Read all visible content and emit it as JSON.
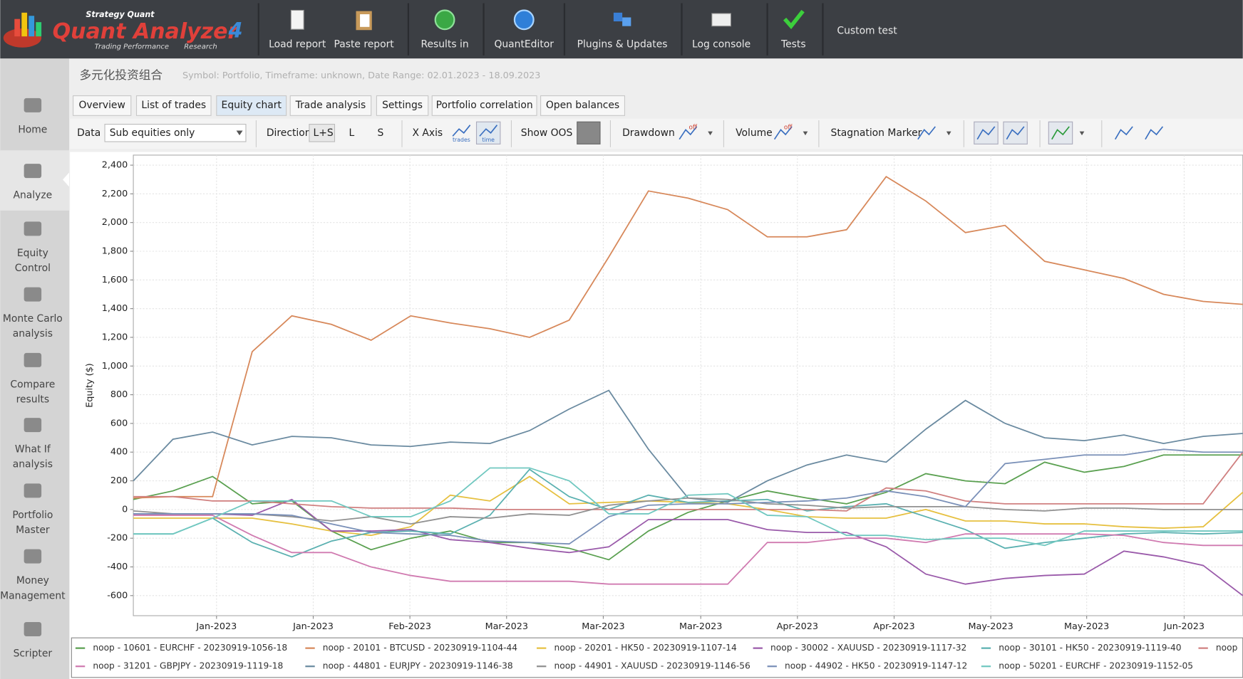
{
  "toolbar": {
    "logo": {
      "brand": "Strategy Quant",
      "title": "Quant Analyzer",
      "version": "4",
      "tagline": "Trading Performance",
      "tagline2": "Research"
    },
    "buttons": [
      "Load report",
      "Paste report",
      "Results in",
      "QuantEditor",
      "Plugins & Updates",
      "Log console",
      "Tests"
    ],
    "custom": "Custom test"
  },
  "sidebar": [
    [
      "Home"
    ],
    [
      "Analyze"
    ],
    [
      "Equity",
      "Control"
    ],
    [
      "Monte Carlo",
      "analysis"
    ],
    [
      "Compare",
      "results"
    ],
    [
      "What If",
      "analysis"
    ],
    [
      "Portfolio",
      "Master"
    ],
    [
      "Money",
      "Management"
    ],
    [
      "Scripter"
    ]
  ],
  "header": {
    "title": "多元化投资组合",
    "subtitle": "Symbol: Portfolio, Timeframe: unknown, Date Range: 02.01.2023 - 18.09.2023"
  },
  "tabs": [
    "Overview",
    "List of trades",
    "Equity chart",
    "Trade analysis",
    "Settings",
    "Portfolio correlation",
    "Open balances"
  ],
  "options": {
    "data_label": "Data",
    "data_value": "Sub equities only",
    "direction": "Direction",
    "directions": [
      "L+S",
      "L",
      "S"
    ],
    "x_axis": "X Axis",
    "x_axis_icons": [
      "trades",
      "time"
    ],
    "show_oos": "Show OOS",
    "drawdown": "Drawdown",
    "off": "off",
    "volume": "Volume",
    "stagnation": "Stagnation Marker"
  },
  "chart_data": {
    "type": "line",
    "ylabel": "Equity ($)",
    "x": [
      0,
      1,
      2,
      3,
      4,
      5,
      6,
      7,
      8,
      9,
      10,
      11,
      12,
      13,
      14,
      15,
      16,
      17,
      18,
      19,
      20,
      21,
      22,
      23,
      24,
      25,
      26,
      27,
      28
    ],
    "xlim": [
      0,
      28
    ],
    "xticks": [
      {
        "value": 2.1,
        "label": "Jan-2023"
      },
      {
        "value": 4.54,
        "label": "Jan-2023"
      },
      {
        "value": 6.98,
        "label": "Feb-2023"
      },
      {
        "value": 9.42,
        "label": "Mar-2023"
      },
      {
        "value": 11.86,
        "label": "Mar-2023"
      },
      {
        "value": 14.32,
        "label": "Mar-2023"
      },
      {
        "value": 16.76,
        "label": "Apr-2023"
      },
      {
        "value": 19.2,
        "label": "Apr-2023"
      },
      {
        "value": 21.64,
        "label": "May-2023"
      },
      {
        "value": 24.06,
        "label": "May-2023"
      },
      {
        "value": 26.52,
        "label": "Jun-2023"
      }
    ],
    "ylim": [
      -740,
      2470
    ],
    "yticks": [
      -600,
      -400,
      -200,
      0,
      200,
      400,
      600,
      800,
      {
        "value": 1000,
        "label": "1,000"
      },
      {
        "value": 1200,
        "label": "1,200"
      },
      {
        "value": 1400,
        "label": "1,400"
      },
      {
        "value": 1600,
        "label": "1,600"
      },
      {
        "value": 1800,
        "label": "1,800"
      },
      {
        "value": 2000,
        "label": "2,000"
      },
      {
        "value": 2200,
        "label": "2,200"
      },
      {
        "value": 2400,
        "label": "2,400"
      }
    ],
    "grid": true,
    "series": [
      {
        "name": "noop - 10601 - EURCHF - 20230919-1056-18",
        "color": "#5aa050",
        "values": [
          70,
          130,
          230,
          40,
          60,
          -150,
          -280,
          -200,
          -150,
          -230,
          -230,
          -270,
          -350,
          -150,
          -20,
          60,
          130,
          80,
          40,
          120,
          250,
          200,
          180,
          330,
          260,
          300,
          380,
          380,
          380
        ]
      },
      {
        "name": "noop - 20101 - BTCUSD - 20230919-1104-44",
        "color": "#d7885a",
        "values": [
          80,
          90,
          90,
          1100,
          1350,
          1290,
          1180,
          1350,
          1300,
          1260,
          1200,
          1320,
          1760,
          2220,
          2170,
          2090,
          1900,
          1900,
          1950,
          2320,
          2150,
          1930,
          1980,
          1730,
          1670,
          1610,
          1500,
          1450,
          1430
        ]
      },
      {
        "name": "noop - 20201 - HK50 - 20230919-1107-14",
        "color": "#e6c040",
        "values": [
          -60,
          -60,
          -60,
          -60,
          -100,
          -150,
          -180,
          -120,
          100,
          60,
          230,
          40,
          50,
          60,
          50,
          40,
          0,
          -50,
          -60,
          -60,
          0,
          -80,
          -80,
          -100,
          -100,
          -120,
          -130,
          -120,
          120
        ]
      },
      {
        "name": "noop - 30002 - XAUUSD - 20230919-1117-32",
        "color": "#9a5aaa",
        "values": [
          -30,
          -30,
          -30,
          -40,
          70,
          -150,
          -150,
          -140,
          -210,
          -230,
          -270,
          -300,
          -260,
          -70,
          -70,
          -70,
          -140,
          -160,
          -160,
          -260,
          -450,
          -520,
          -480,
          -460,
          -450,
          -290,
          -330,
          -390,
          -600
        ]
      },
      {
        "name": "noop - 30101 - HK50 - 20230919-1119-40",
        "color": "#5ab0b0",
        "values": [
          -170,
          -170,
          -60,
          -230,
          -330,
          -220,
          -160,
          -150,
          -170,
          -40,
          280,
          90,
          0,
          100,
          50,
          60,
          70,
          -10,
          20,
          40,
          -50,
          -140,
          -270,
          -230,
          -200,
          -170,
          -160,
          -170,
          -160
        ]
      },
      {
        "name": "noop",
        "color": "#d08080",
        "values": [
          90,
          90,
          60,
          60,
          40,
          20,
          10,
          10,
          10,
          0,
          0,
          0,
          0,
          0,
          0,
          0,
          0,
          0,
          -10,
          150,
          130,
          60,
          40,
          40,
          40,
          40,
          40,
          40,
          400
        ]
      },
      {
        "name": "noop - 31201 - GBPJPY - 20230919-1119-18",
        "color": "#d07ab0",
        "values": [
          -40,
          -40,
          -40,
          -180,
          -300,
          -300,
          -400,
          -460,
          -500,
          -500,
          -500,
          -500,
          -520,
          -520,
          -520,
          -520,
          -230,
          -230,
          -200,
          -200,
          -230,
          -170,
          -170,
          -170,
          -170,
          -180,
          -230,
          -250,
          -250
        ]
      },
      {
        "name": "noop - 44801 - EURJPY - 20230919-1146-38",
        "color": "#6a8aa0",
        "values": [
          200,
          490,
          540,
          450,
          510,
          500,
          450,
          440,
          470,
          460,
          550,
          700,
          830,
          420,
          80,
          50,
          200,
          310,
          380,
          330,
          560,
          760,
          600,
          500,
          480,
          520,
          460,
          510,
          530
        ]
      },
      {
        "name": "noop - 44901 - XAUUSD - 20230919-1146-56",
        "color": "#909090",
        "values": [
          -10,
          -30,
          -30,
          -30,
          -50,
          -80,
          -50,
          -100,
          -50,
          -60,
          -30,
          -40,
          30,
          60,
          80,
          70,
          40,
          30,
          10,
          20,
          20,
          20,
          0,
          -10,
          10,
          10,
          0,
          0,
          0
        ]
      },
      {
        "name": "noop - 44902 - HK50 - 20230919-1147-12",
        "color": "#7a90b8",
        "values": [
          -30,
          -30,
          -30,
          -30,
          -40,
          -100,
          -160,
          -170,
          -180,
          -220,
          -230,
          -240,
          -50,
          30,
          40,
          40,
          50,
          60,
          80,
          130,
          90,
          20,
          320,
          350,
          380,
          380,
          420,
          400,
          400
        ]
      },
      {
        "name": "noop - 50201 - EURCHF - 20230919-1152-05",
        "color": "#70c8c0",
        "values": [
          -170,
          -170,
          -60,
          60,
          60,
          60,
          -50,
          -50,
          60,
          290,
          290,
          200,
          -30,
          -30,
          100,
          110,
          -40,
          -50,
          -180,
          -180,
          -210,
          -200,
          -200,
          -250,
          -150,
          -150,
          -150,
          -150,
          -150
        ]
      }
    ]
  }
}
